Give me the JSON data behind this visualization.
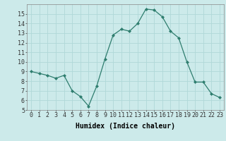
{
  "x": [
    0,
    1,
    2,
    3,
    4,
    5,
    6,
    7,
    8,
    9,
    10,
    11,
    12,
    13,
    14,
    15,
    16,
    17,
    18,
    19,
    20,
    21,
    22,
    23
  ],
  "y": [
    9,
    8.8,
    8.6,
    8.3,
    8.6,
    7.0,
    6.4,
    5.4,
    7.5,
    10.3,
    12.8,
    13.4,
    13.2,
    14.0,
    15.5,
    15.4,
    14.7,
    13.2,
    12.5,
    10.0,
    7.9,
    7.9,
    6.7,
    6.3
  ],
  "line_color": "#2e7d6e",
  "marker": "D",
  "marker_size": 2,
  "bg_color": "#cceaea",
  "grid_color": "#b0d8d8",
  "xlabel": "Humidex (Indice chaleur)",
  "ylabel": "",
  "xlim": [
    -0.5,
    23.5
  ],
  "ylim": [
    5,
    16
  ],
  "yticks": [
    5,
    6,
    7,
    8,
    9,
    10,
    11,
    12,
    13,
    14,
    15
  ],
  "xticks": [
    0,
    1,
    2,
    3,
    4,
    5,
    6,
    7,
    8,
    9,
    10,
    11,
    12,
    13,
    14,
    15,
    16,
    17,
    18,
    19,
    20,
    21,
    22,
    23
  ],
  "label_fontsize": 7,
  "tick_fontsize": 6
}
